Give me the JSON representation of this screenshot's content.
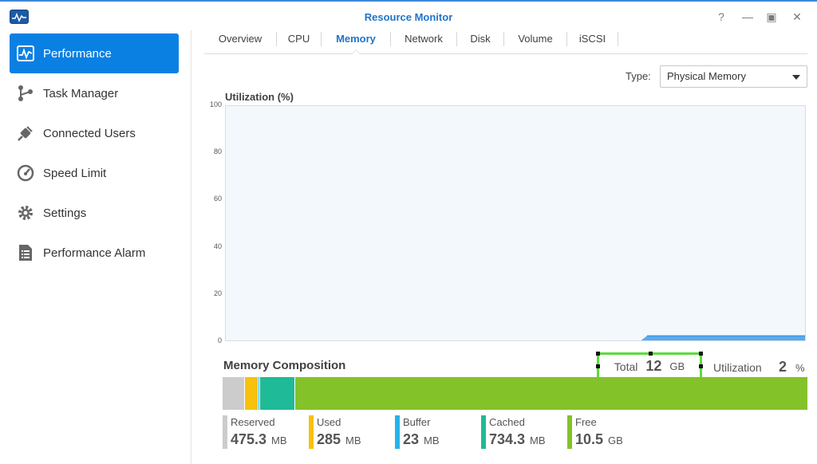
{
  "window": {
    "title": "Resource Monitor",
    "controls": [
      "?",
      "—",
      "▣",
      "✕"
    ]
  },
  "sidebar": {
    "items": [
      {
        "label": "Performance",
        "icon": "performance-icon",
        "active": true
      },
      {
        "label": "Task Manager",
        "icon": "task-manager-icon",
        "active": false
      },
      {
        "label": "Connected Users",
        "icon": "plug-icon",
        "active": false
      },
      {
        "label": "Speed Limit",
        "icon": "speedometer-icon",
        "active": false
      },
      {
        "label": "Settings",
        "icon": "gear-icon",
        "active": false
      },
      {
        "label": "Performance Alarm",
        "icon": "alarm-list-icon",
        "active": false
      }
    ]
  },
  "tabs": [
    {
      "label": "Overview"
    },
    {
      "label": "CPU"
    },
    {
      "label": "Memory",
      "active": true
    },
    {
      "label": "Network"
    },
    {
      "label": "Disk"
    },
    {
      "label": "Volume"
    },
    {
      "label": "iSCSI"
    }
  ],
  "type_selector": {
    "label": "Type:",
    "value": "Physical Memory"
  },
  "chart_data": {
    "type": "area",
    "title": "Utilization (%)",
    "ylim": [
      0,
      100
    ],
    "yticks": [
      "100",
      "80",
      "60",
      "40",
      "20",
      "0"
    ],
    "grid": false,
    "series": [
      {
        "values": [
          0,
          0,
          0,
          0,
          0,
          0,
          0,
          0,
          0,
          0,
          0,
          0,
          0,
          0,
          0,
          0,
          0,
          0,
          0,
          0,
          0,
          0,
          0,
          0,
          0,
          0,
          0,
          0,
          0,
          0,
          0,
          0,
          0,
          0,
          0,
          0,
          0,
          0,
          0,
          0,
          0,
          0,
          0,
          0,
          0,
          0,
          0,
          0,
          0,
          0,
          0,
          0,
          0,
          0,
          0,
          0,
          0,
          0,
          0,
          0,
          0,
          0,
          0,
          0,
          0,
          0,
          0,
          0,
          0,
          0,
          0,
          0,
          2,
          2,
          2,
          2,
          2,
          2,
          2,
          2,
          2,
          2,
          2,
          2,
          2,
          2,
          2,
          2,
          2,
          2,
          2,
          2,
          2,
          2,
          2,
          2,
          2,
          2,
          2,
          2
        ]
      }
    ],
    "colors": {
      "area": "#5aaaf0",
      "line": "#2f86d6",
      "background": "#f3f8fd"
    }
  },
  "memory_composition": {
    "title": "Memory Composition",
    "total": {
      "label": "Total",
      "value": "12",
      "unit": "GB"
    },
    "utilization": {
      "label": "Utilization",
      "value": "2",
      "unit": "%"
    },
    "segments": [
      {
        "name": "Reserved",
        "value": "475.3",
        "unit": "MB",
        "color": "#cccccc",
        "fraction": 0.0387
      },
      {
        "name": "Used",
        "value": "285",
        "unit": "MB",
        "color": "#f7c10c",
        "fraction": 0.0232
      },
      {
        "name": "Buffer",
        "value": "23",
        "unit": "MB",
        "color": "#25b3e8",
        "fraction": 0.0019
      },
      {
        "name": "Cached",
        "value": "734.3",
        "unit": "MB",
        "color": "#1fba97",
        "fraction": 0.0598
      },
      {
        "name": "Free",
        "value": "10.5",
        "unit": "GB",
        "color": "#84c22a",
        "fraction": 0.8764
      }
    ]
  }
}
